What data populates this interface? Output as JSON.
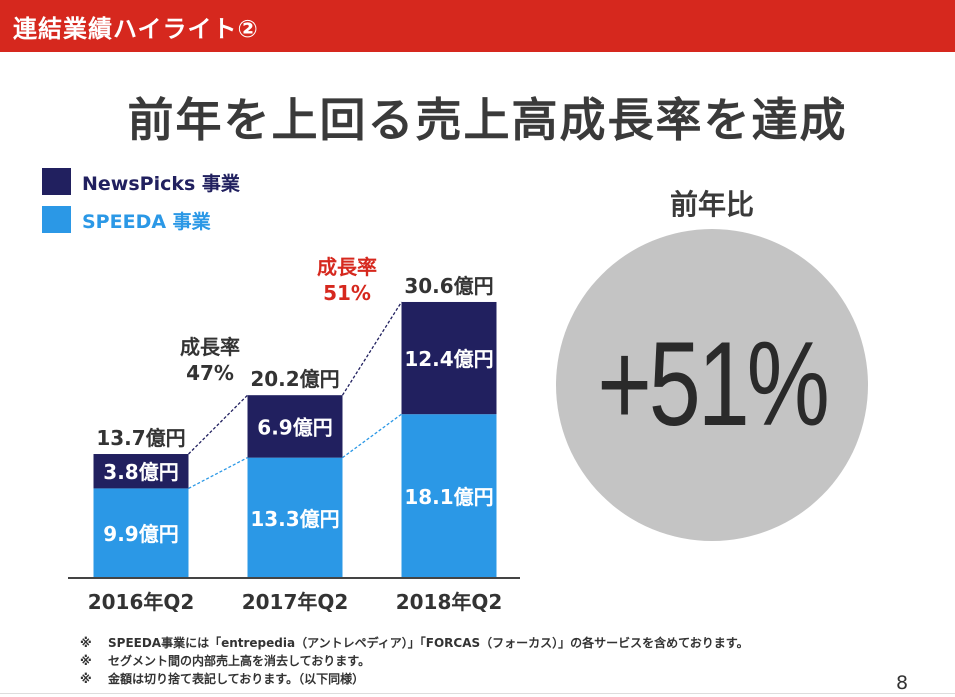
{
  "header": {
    "title": "連結業績ハイライト②"
  },
  "main_title": "前年を上回る売上高成長率を達成",
  "colors": {
    "header": "#d6281e",
    "newspicks": "#21205f",
    "speeda": "#2b98e6",
    "growth_red": "#d6281e",
    "circle": "#c4c4c4"
  },
  "legend": [
    {
      "label": "NewsPicks 事業",
      "color": "#21205f"
    },
    {
      "label": "SPEEDA 事業",
      "color": "#2b98e6"
    }
  ],
  "chart_data": {
    "type": "bar",
    "stacked": true,
    "categories": [
      "2016年Q2",
      "2017年Q2",
      "2018年Q2"
    ],
    "series": [
      {
        "name": "SPEEDA 事業",
        "values": [
          9.9,
          13.3,
          18.1
        ],
        "labels": [
          "9.9億円",
          "13.3億円",
          "18.1億円"
        ]
      },
      {
        "name": "NewsPicks 事業",
        "values": [
          3.8,
          6.9,
          12.4
        ],
        "labels": [
          "3.8億円",
          "6.9億円",
          "12.4億円"
        ]
      }
    ],
    "totals": [
      13.7,
      20.2,
      30.6
    ],
    "total_labels": [
      "13.7億円",
      "20.2億円",
      "30.6億円"
    ],
    "growth_annotations": [
      {
        "label": "成長率",
        "value": "47%",
        "between": [
          "2016年Q2",
          "2017年Q2"
        ]
      },
      {
        "label": "成長率",
        "value": "51%",
        "between": [
          "2017年Q2",
          "2018年Q2"
        ]
      }
    ],
    "unit": "億円",
    "ylim": [
      0,
      30.6
    ]
  },
  "yoy": {
    "label": "前年比",
    "value": "+51%"
  },
  "footnotes": [
    {
      "mark": "※",
      "text": "SPEEDA事業には「entrepedia（アントレペディア）」「FORCAS（フォーカス）」の各サービスを含めております。"
    },
    {
      "mark": "※",
      "text": "セグメント間の内部売上高を消去しております。"
    },
    {
      "mark": "※",
      "text": "金額は切り捨て表記しております。（以下同様）"
    }
  ],
  "page_number": "8"
}
